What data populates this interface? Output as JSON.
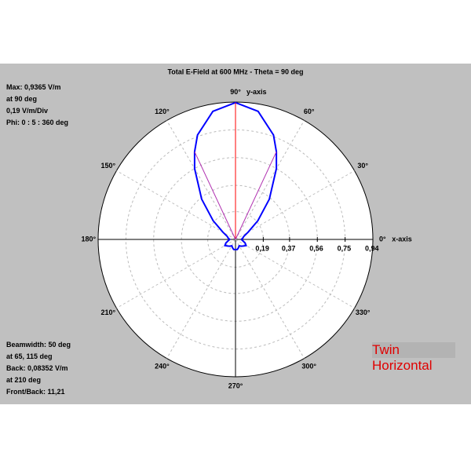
{
  "chart_data": {
    "type": "polar",
    "title": "Total E-Field at 600 MHz - Theta = 90 deg",
    "x_axis_label": "x-axis",
    "y_axis_label": "y-axis",
    "rlim": [
      0,
      0.94
    ],
    "rticks": [
      {
        "value": 0.19,
        "label": "0,19"
      },
      {
        "value": 0.37,
        "label": "0,37"
      },
      {
        "value": 0.56,
        "label": "0,56"
      },
      {
        "value": 0.75,
        "label": "0,75"
      },
      {
        "value": 0.94,
        "label": "0,94"
      }
    ],
    "angle_ticks": [
      {
        "value": 0,
        "label": "0°"
      },
      {
        "value": 30,
        "label": "30°"
      },
      {
        "value": 60,
        "label": "60°"
      },
      {
        "value": 90,
        "label": "90°"
      },
      {
        "value": 120,
        "label": "120°"
      },
      {
        "value": 150,
        "label": "150°"
      },
      {
        "value": 180,
        "label": "180°"
      },
      {
        "value": 210,
        "label": "210°"
      },
      {
        "value": 240,
        "label": "240°"
      },
      {
        "value": 270,
        "label": "270°"
      },
      {
        "value": 300,
        "label": "300°"
      },
      {
        "value": 330,
        "label": "330°"
      }
    ],
    "series": [
      {
        "color": "#0000ff",
        "angles": [
          0,
          10,
          20,
          30,
          40,
          50,
          60,
          65,
          70,
          80,
          90,
          100,
          110,
          115,
          120,
          130,
          140,
          150,
          160,
          170,
          180,
          190,
          200,
          210,
          220,
          230,
          240,
          250,
          260,
          270,
          280,
          290,
          300,
          310,
          320,
          330,
          340,
          350,
          360
        ],
        "values": [
          0.04,
          0.05,
          0.06,
          0.1,
          0.2,
          0.36,
          0.56,
          0.662,
          0.76,
          0.89,
          0.9365,
          0.89,
          0.76,
          0.662,
          0.56,
          0.36,
          0.2,
          0.1,
          0.06,
          0.05,
          0.04,
          0.05,
          0.07,
          0.08352,
          0.07,
          0.06,
          0.05,
          0.06,
          0.07,
          0.07,
          0.07,
          0.06,
          0.05,
          0.06,
          0.07,
          0.08352,
          0.07,
          0.05,
          0.04
        ]
      }
    ],
    "markers": [
      {
        "angle": 90,
        "color": "#ff0000"
      },
      {
        "angle": 65,
        "color": "#b030b0"
      },
      {
        "angle": 115,
        "color": "#b030b0"
      }
    ],
    "info_top": [
      "Max: 0,9365 V/m",
      "at 90 deg",
      "0,19 V/m/Div",
      "Phi: 0 : 5 : 360 deg"
    ],
    "info_bottom": [
      "Beamwidth: 50 deg",
      "at 65, 115 deg",
      "Back: 0,08352 V/m",
      "at 210 deg",
      "Front/Back: 11,21"
    ],
    "tag": [
      "Twin",
      "Horizontal"
    ]
  }
}
